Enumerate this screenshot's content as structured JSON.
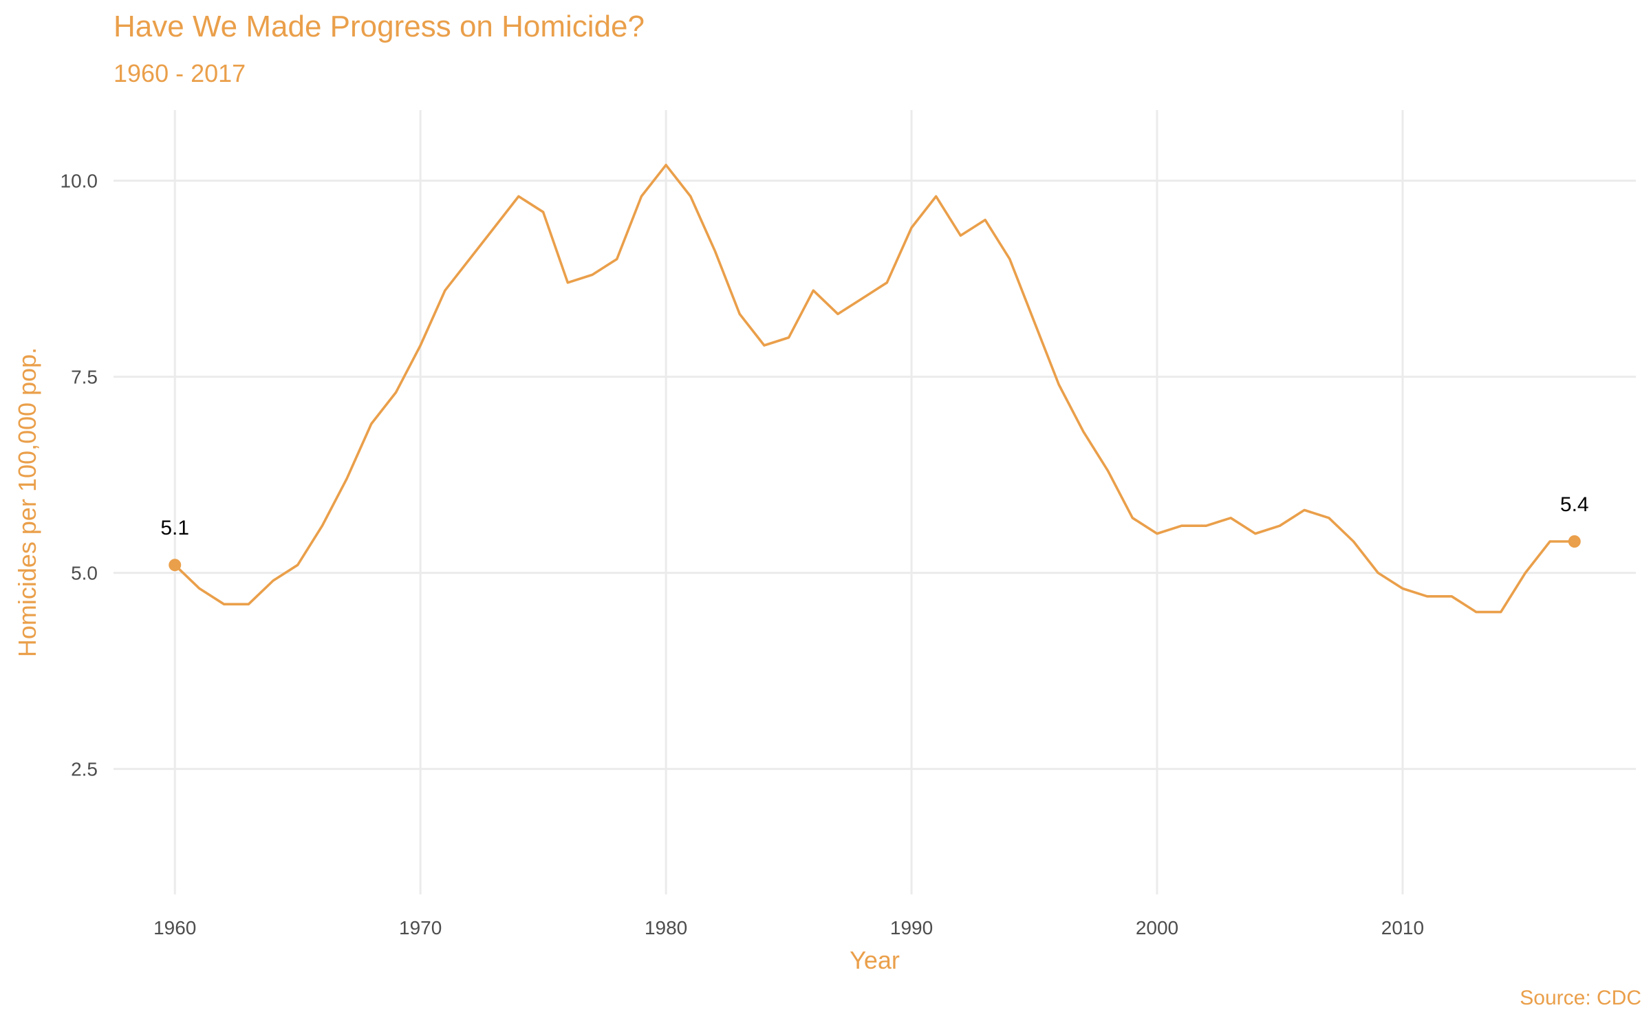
{
  "theme": {
    "accent": "#EA9F4A",
    "grid": "#EBEBEB",
    "tick_text": "#4d4d4d",
    "label_text": "#000000"
  },
  "chart_data": {
    "type": "line",
    "title": "Have We Made Progress on Homicide?",
    "subtitle": "1960 - 2017",
    "caption": "Source: CDC",
    "xlabel": "Year",
    "ylabel": "Homicides per 100,000 pop.",
    "xlim": [
      1957.5,
      2019.5
    ],
    "ylim": [
      0.9,
      10.9
    ],
    "x_ticks": [
      1960,
      1970,
      1980,
      1990,
      2000,
      2010
    ],
    "y_ticks": [
      2.5,
      5.0,
      7.5,
      10.0
    ],
    "y_tick_labels": [
      "2.5",
      "5.0",
      "7.5",
      "10.0"
    ],
    "grid": true,
    "legend": "none",
    "x": [
      1960,
      1961,
      1962,
      1963,
      1964,
      1965,
      1966,
      1967,
      1968,
      1969,
      1970,
      1971,
      1972,
      1973,
      1974,
      1975,
      1976,
      1977,
      1978,
      1979,
      1980,
      1981,
      1982,
      1983,
      1984,
      1985,
      1986,
      1987,
      1988,
      1989,
      1990,
      1991,
      1992,
      1993,
      1994,
      1995,
      1996,
      1997,
      1998,
      1999,
      2000,
      2001,
      2002,
      2003,
      2004,
      2005,
      2006,
      2007,
      2008,
      2009,
      2010,
      2011,
      2012,
      2013,
      2014,
      2015,
      2016,
      2017
    ],
    "y": [
      5.1,
      4.8,
      4.6,
      4.6,
      4.9,
      5.1,
      5.6,
      6.2,
      6.9,
      7.3,
      7.9,
      8.6,
      9.0,
      9.4,
      9.8,
      9.6,
      8.7,
      8.8,
      9.0,
      9.8,
      10.2,
      9.8,
      9.1,
      8.3,
      7.9,
      8.0,
      8.6,
      8.3,
      8.5,
      8.7,
      9.4,
      9.8,
      9.3,
      9.5,
      9.0,
      8.2,
      7.4,
      6.8,
      6.3,
      5.7,
      5.5,
      5.6,
      5.6,
      5.7,
      5.5,
      5.6,
      5.8,
      5.7,
      5.4,
      5.0,
      4.8,
      4.7,
      4.7,
      4.5,
      4.5,
      5.0,
      5.4,
      5.4
    ],
    "highlighted_points": [
      {
        "x": 1960,
        "y": 5.1,
        "label": "5.1"
      },
      {
        "x": 2017,
        "y": 5.4,
        "label": "5.4"
      }
    ]
  }
}
